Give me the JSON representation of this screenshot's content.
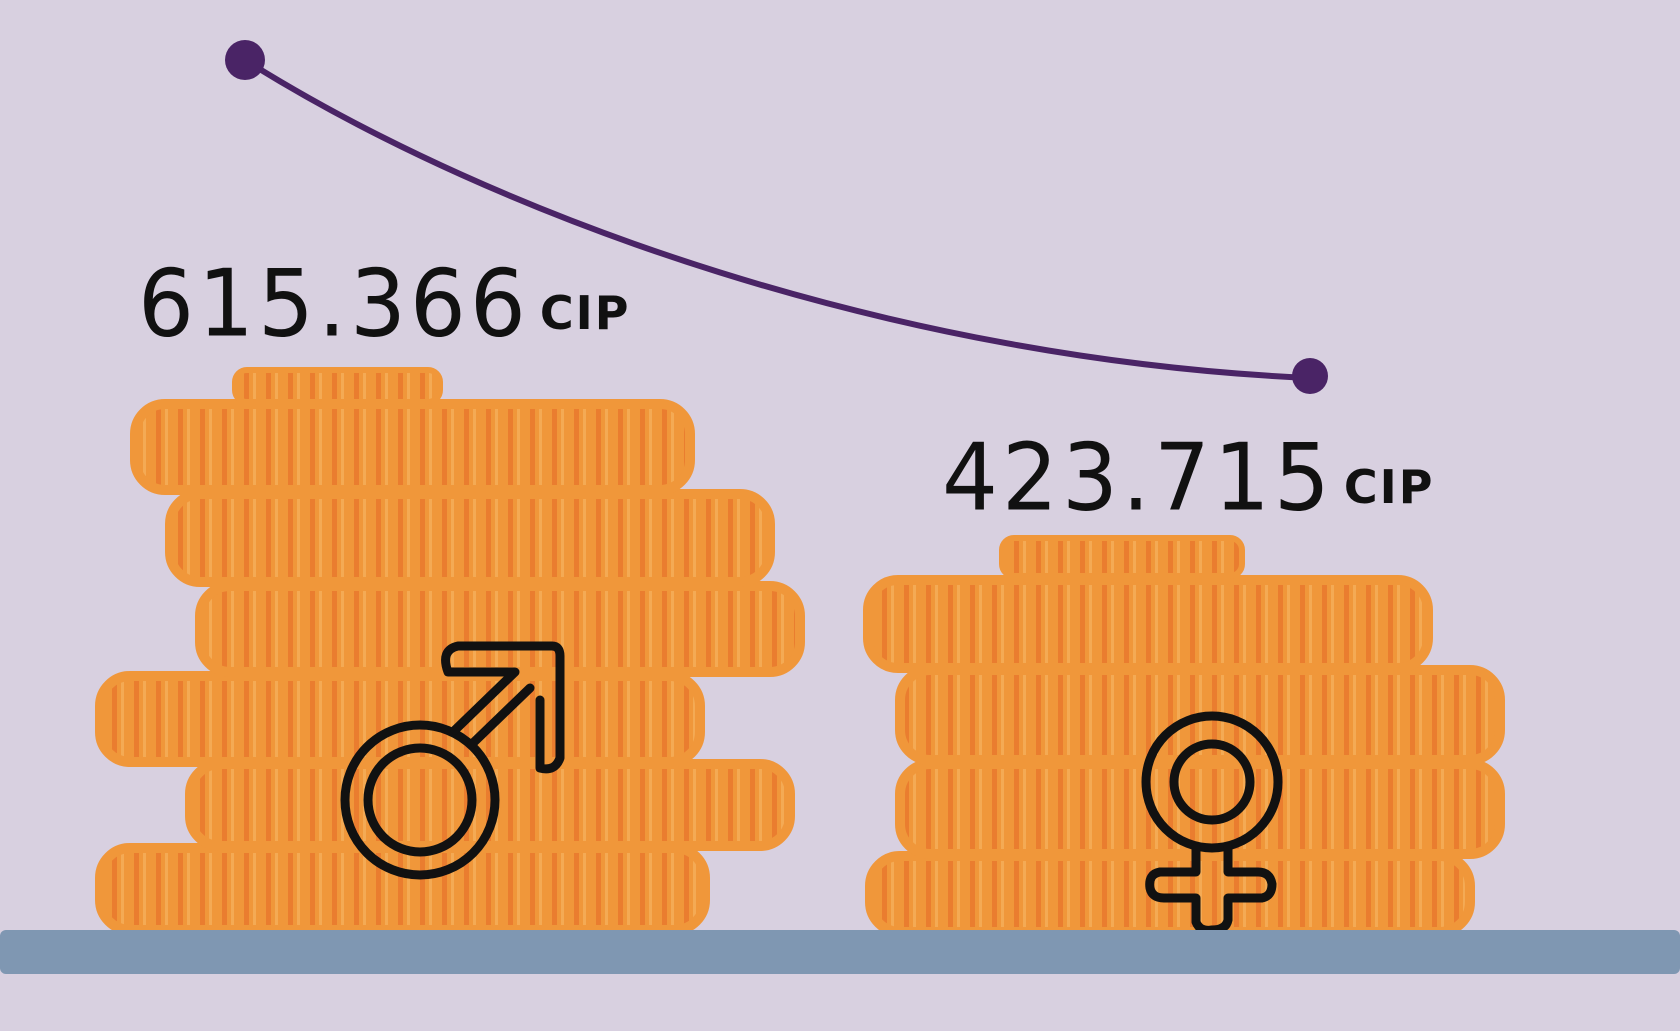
{
  "chart_data": {
    "type": "bar",
    "categories": [
      "male",
      "female"
    ],
    "values": [
      615366,
      423715
    ],
    "value_labels": [
      "615.366",
      "423.715"
    ],
    "unit": "CIP",
    "category_icons": [
      "male-symbol-icon",
      "female-symbol-icon"
    ],
    "title": "",
    "xlabel": "",
    "ylabel": "",
    "legend": "none",
    "grid": false
  },
  "colors": {
    "background": "#d8d0e0",
    "coin_fill": "#f0973a",
    "coin_light": "#f7b865",
    "coin_dark": "#e8742a",
    "trend_line": "#4a2466",
    "baseline": "#7f97b2",
    "ink": "#111111"
  },
  "icons": [
    "male-symbol-icon",
    "female-symbol-icon",
    "coin-stack-icon",
    "trend-line"
  ]
}
